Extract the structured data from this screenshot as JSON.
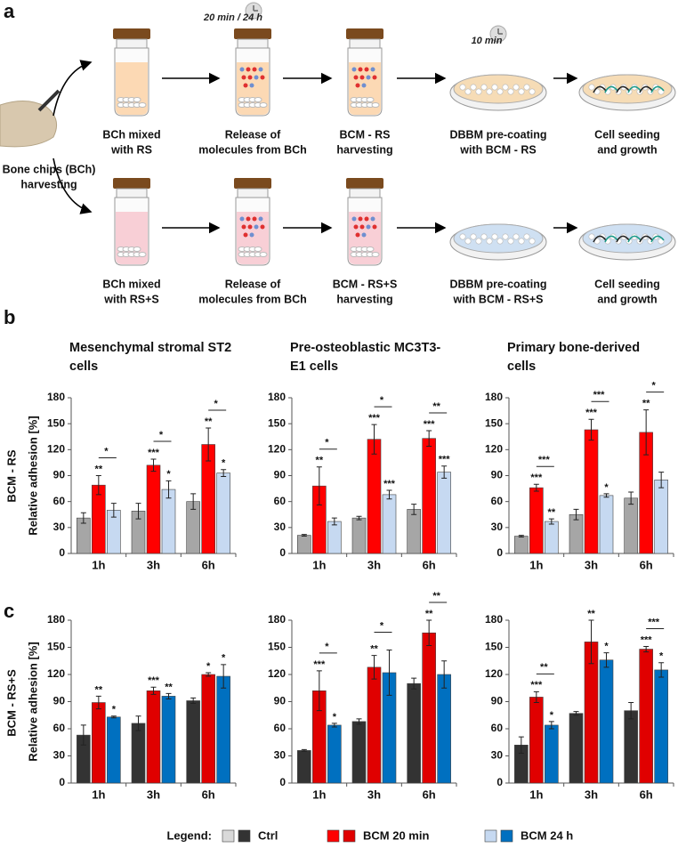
{
  "panel_a": {
    "letter": "a",
    "timers": [
      "20 min / 24 h",
      "10 min"
    ],
    "source": [
      "Bone chips (BCh)",
      "harvesting"
    ],
    "rows": [
      {
        "steps": [
          [
            "BCh mixed",
            "with RS"
          ],
          [
            "Release of",
            "molecules from BCh"
          ],
          [
            "BCM - RS",
            "harvesting"
          ],
          [
            "DBBM pre-coating",
            "with BCM - RS"
          ],
          [
            "Cell seeding",
            "and growth"
          ]
        ]
      },
      {
        "steps": [
          [
            "BCh mixed",
            "with RS+S"
          ],
          [
            "Release of",
            "molecules from BCh"
          ],
          [
            "BCM - RS+S",
            "harvesting"
          ],
          [
            "DBBM pre-coating",
            "with BCM - RS+S"
          ],
          [
            "Cell seeding",
            "and growth"
          ]
        ]
      }
    ]
  },
  "panel_b": {
    "letter": "b",
    "row_label": "BCM - RS"
  },
  "panel_c": {
    "letter": "c",
    "row_label": "BCM - RS+S"
  },
  "legend": {
    "title": "Legend:",
    "items": [
      {
        "label": "Ctrl",
        "colors": [
          "#d9d9d9",
          "#333333"
        ]
      },
      {
        "label": "BCM 20 min",
        "colors": [
          "#ff0000",
          "#e00000"
        ]
      },
      {
        "label": "BCM 24 h",
        "colors": [
          "#c6d9f1",
          "#0070c0"
        ]
      }
    ]
  },
  "chart_data": [
    {
      "type": "bar",
      "title": "Mesenchymal stromal ST2 cells",
      "ylabel": "Relative adhesion [%]",
      "categories": [
        "1h",
        "3h",
        "6h"
      ],
      "ylim": [
        0,
        180
      ],
      "yticks": [
        0,
        30,
        60,
        90,
        120,
        150,
        180
      ],
      "series": [
        {
          "color": "#a6a6a6",
          "values": [
            41,
            49,
            60
          ],
          "errors": [
            6,
            9,
            9
          ],
          "stars": [
            null,
            null,
            null
          ]
        },
        {
          "color": "#ff0000",
          "values": [
            79,
            102,
            126
          ],
          "errors": [
            11,
            7,
            19
          ],
          "stars": [
            "**",
            "***",
            "**"
          ]
        },
        {
          "color": "#c6d9f1",
          "values": [
            50,
            74,
            93
          ],
          "errors": [
            8,
            10,
            4
          ],
          "stars": [
            null,
            "*",
            "*"
          ]
        }
      ],
      "brackets": [
        "*",
        "*",
        "*"
      ]
    },
    {
      "type": "bar",
      "title": "Pre-osteoblastic MC3T3-E1 cells",
      "categories": [
        "1h",
        "3h",
        "6h"
      ],
      "ylim": [
        0,
        180
      ],
      "yticks": [
        0,
        30,
        60,
        90,
        120,
        150,
        180
      ],
      "series": [
        {
          "color": "#a6a6a6",
          "values": [
            21,
            41,
            51
          ],
          "errors": [
            1,
            2,
            6
          ],
          "stars": [
            null,
            null,
            null
          ]
        },
        {
          "color": "#ff0000",
          "values": [
            78,
            132,
            133
          ],
          "errors": [
            22,
            17,
            9
          ],
          "stars": [
            "**",
            "***",
            "***"
          ]
        },
        {
          "color": "#c6d9f1",
          "values": [
            37,
            68,
            94
          ],
          "errors": [
            4,
            5,
            7
          ],
          "stars": [
            null,
            "***",
            "***"
          ]
        }
      ],
      "brackets": [
        "*",
        "*",
        "**"
      ]
    },
    {
      "type": "bar",
      "title": "Primary bone-derived cells",
      "categories": [
        "1h",
        "3h",
        "6h"
      ],
      "ylim": [
        0,
        180
      ],
      "yticks": [
        0,
        30,
        60,
        90,
        120,
        150,
        180
      ],
      "series": [
        {
          "color": "#a6a6a6",
          "values": [
            20,
            45,
            64
          ],
          "errors": [
            1,
            6,
            7
          ],
          "stars": [
            null,
            null,
            null
          ]
        },
        {
          "color": "#ff0000",
          "values": [
            76,
            143,
            140
          ],
          "errors": [
            4,
            12,
            26
          ],
          "stars": [
            "***",
            "***",
            "**"
          ]
        },
        {
          "color": "#c6d9f1",
          "values": [
            37,
            67,
            85
          ],
          "errors": [
            3,
            2,
            9
          ],
          "stars": [
            "**",
            "*",
            null
          ]
        }
      ],
      "brackets": [
        "***",
        "***",
        "*"
      ]
    },
    {
      "type": "bar",
      "ylabel": "Relative adhesion [%]",
      "categories": [
        "1h",
        "3h",
        "6h"
      ],
      "ylim": [
        0,
        180
      ],
      "yticks": [
        0,
        30,
        60,
        90,
        120,
        150,
        180
      ],
      "series": [
        {
          "color": "#333333",
          "values": [
            53,
            66,
            91
          ],
          "errors": [
            11,
            8,
            3
          ],
          "stars": [
            null,
            null,
            null
          ]
        },
        {
          "color": "#e00000",
          "values": [
            89,
            102,
            120
          ],
          "errors": [
            7,
            4,
            2
          ],
          "stars": [
            "**",
            "***",
            "*"
          ]
        },
        {
          "color": "#0070c0",
          "values": [
            73,
            96,
            118
          ],
          "errors": [
            1,
            3,
            13
          ],
          "stars": [
            "*",
            "**",
            "*"
          ]
        }
      ],
      "brackets": [
        null,
        null,
        null
      ]
    },
    {
      "type": "bar",
      "categories": [
        "1h",
        "3h",
        "6h"
      ],
      "ylim": [
        0,
        180
      ],
      "yticks": [
        0,
        30,
        60,
        90,
        120,
        150,
        180
      ],
      "series": [
        {
          "color": "#333333",
          "values": [
            36,
            68,
            110
          ],
          "errors": [
            1,
            3,
            6
          ],
          "stars": [
            null,
            null,
            null
          ]
        },
        {
          "color": "#e00000",
          "values": [
            102,
            128,
            166
          ],
          "errors": [
            22,
            13,
            14
          ],
          "stars": [
            "***",
            "**",
            "**"
          ]
        },
        {
          "color": "#0070c0",
          "values": [
            64,
            122,
            120
          ],
          "errors": [
            2,
            25,
            15
          ],
          "stars": [
            "*",
            null,
            null
          ]
        }
      ],
      "brackets": [
        "*",
        "*",
        "**"
      ]
    },
    {
      "type": "bar",
      "categories": [
        "1h",
        "3h",
        "6h"
      ],
      "ylim": [
        0,
        180
      ],
      "yticks": [
        0,
        30,
        60,
        90,
        120,
        150,
        180
      ],
      "series": [
        {
          "color": "#333333",
          "values": [
            42,
            77,
            80
          ],
          "errors": [
            9,
            2,
            9
          ],
          "stars": [
            null,
            null,
            null
          ]
        },
        {
          "color": "#e00000",
          "values": [
            95,
            156,
            148
          ],
          "errors": [
            6,
            24,
            3
          ],
          "stars": [
            "***",
            "**",
            "***"
          ]
        },
        {
          "color": "#0070c0",
          "values": [
            64,
            136,
            125
          ],
          "errors": [
            4,
            8,
            8
          ],
          "stars": [
            "*",
            "*",
            "*"
          ]
        }
      ],
      "brackets": [
        "**",
        null,
        "***"
      ]
    }
  ]
}
